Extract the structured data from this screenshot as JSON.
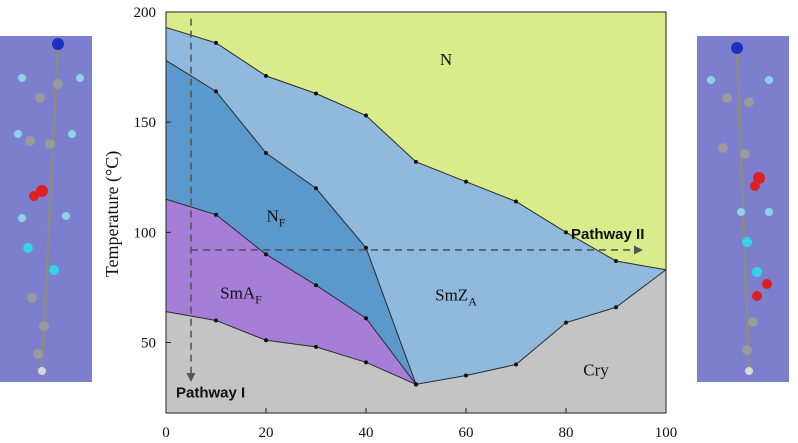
{
  "chart_data": {
    "type": "area",
    "xlabel": "",
    "ylabel": "Temperature (°C)",
    "xlim": [
      0,
      100
    ],
    "ylim": [
      18,
      200
    ],
    "x_ticks": [
      0,
      20,
      40,
      60,
      80,
      100
    ],
    "y_ticks": [
      50,
      100,
      150,
      200
    ],
    "grid": false,
    "boundaries": [
      {
        "id": "iso-n",
        "x": [
          0,
          10,
          20,
          30,
          40,
          50,
          60,
          70,
          80,
          90,
          100
        ],
        "y": [
          193,
          186,
          171,
          163,
          153,
          132,
          123,
          114,
          100,
          87,
          83
        ]
      },
      {
        "id": "n-nf-smza",
        "x": [
          0,
          10,
          20,
          30,
          40,
          50
        ],
        "y": [
          178,
          164,
          136,
          120,
          93,
          31
        ]
      },
      {
        "id": "nf-smaf",
        "x": [
          0,
          10,
          20,
          30,
          40,
          50
        ],
        "y": [
          115,
          108,
          90,
          76,
          61,
          31
        ]
      },
      {
        "id": "cry",
        "x": [
          0,
          10,
          20,
          30,
          40,
          50,
          60,
          70,
          80,
          90,
          100
        ],
        "y": [
          64,
          60,
          51,
          48,
          41,
          31,
          35,
          40,
          59,
          66,
          83
        ]
      }
    ],
    "regions": [
      {
        "name": "N",
        "color": "#d9eb8a",
        "label_at": [
          56,
          176
        ]
      },
      {
        "name": "SmZ",
        "subscript": "A",
        "color": "#8fb9dd",
        "label_at": [
          58,
          69
        ]
      },
      {
        "name": "N",
        "subscript": "F",
        "color": "#5b98cb",
        "label_at": [
          22,
          105
        ]
      },
      {
        "name": "SmA",
        "subscript": "F",
        "color": "#a77ed7",
        "label_at": [
          15,
          70
        ]
      },
      {
        "name": "Cry",
        "color": "#c4c4c4",
        "label_at": [
          86,
          35
        ]
      }
    ],
    "annotations": [
      {
        "id": "pathway-1",
        "text": "Pathway I",
        "arrow_from": [
          5,
          197
        ],
        "arrow_to": [
          5,
          33
        ],
        "label_at": [
          2,
          25
        ]
      },
      {
        "id": "pathway-2",
        "text": "Pathway II",
        "arrow_from": [
          5,
          92
        ],
        "arrow_to": [
          95,
          92
        ],
        "label_at": [
          81,
          97
        ]
      }
    ]
  },
  "colors": {
    "line": "#2b2b2b",
    "arrow": "#555555",
    "mol_panel": "#7b7fce"
  }
}
